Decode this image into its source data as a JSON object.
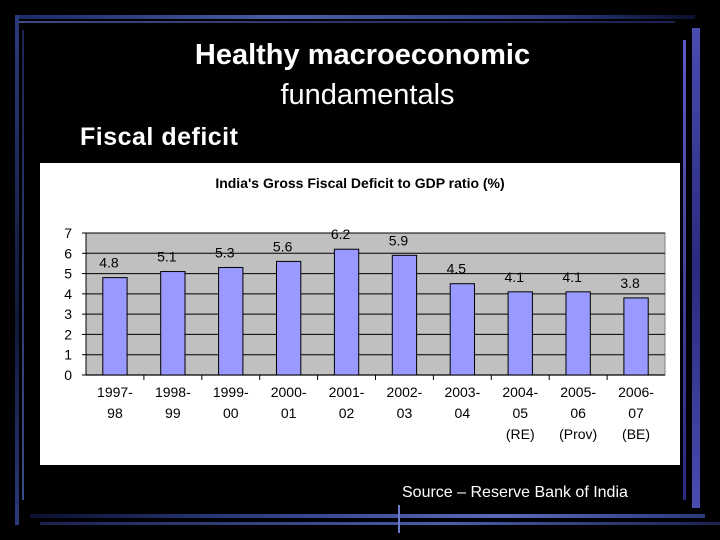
{
  "slide": {
    "title_line1": "Healthy macroeconomic",
    "title_line2": "fundamentals",
    "subtitle": "Fiscal deficit",
    "source": "Source – Reserve Bank of India"
  },
  "colors": {
    "background": "#000000",
    "bar": "#9999ff",
    "plot_area": "#c0c0c0",
    "text": "#ffffff"
  },
  "chart_data": {
    "type": "bar",
    "title": "India's Gross Fiscal Deficit to GDP ratio (%)",
    "categories": [
      [
        "1997-",
        "98"
      ],
      [
        "1998-",
        "99"
      ],
      [
        "1999-",
        "00"
      ],
      [
        "2000-",
        "01"
      ],
      [
        "2001-",
        "02"
      ],
      [
        "2002-",
        "03"
      ],
      [
        "2003-",
        "04"
      ],
      [
        "2004-",
        "05",
        "(RE)"
      ],
      [
        "2005-",
        "06",
        "(Prov)"
      ],
      [
        "2006-",
        "07",
        "(BE)"
      ]
    ],
    "values": [
      4.8,
      5.1,
      5.3,
      5.6,
      6.2,
      5.9,
      4.5,
      4.1,
      4.1,
      3.8
    ],
    "data_labels": [
      "4.8",
      "5.1",
      "5.3",
      "5.6",
      "6.2",
      "5.9",
      "4.5",
      "4.1",
      "4.1",
      "3.8"
    ],
    "yticks": [
      "0",
      "1",
      "2",
      "3",
      "4",
      "5",
      "6",
      "7"
    ],
    "ylim": [
      0,
      7
    ],
    "xlabel": "",
    "ylabel": "",
    "grid": true,
    "legend": "none"
  }
}
